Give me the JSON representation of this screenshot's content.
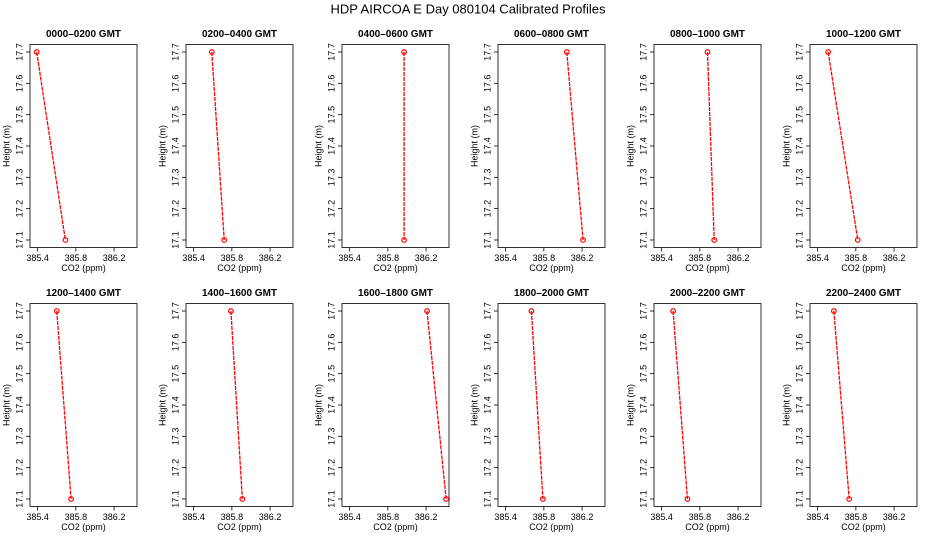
{
  "title": "HDP  AIRCOA E  Day 080104  Calibrated Profiles",
  "chart_data": [
    {
      "type": "line",
      "title": "0000–0200 GMT",
      "xlabel": "CO2 (ppm)",
      "ylabel": "Height (m)",
      "x": [
        385.39,
        385.69
      ],
      "values": [
        17.7,
        17.1
      ],
      "color": "#ff0000",
      "xlim": [
        385.32,
        386.44
      ],
      "ylim": [
        17.076,
        17.724
      ],
      "xticks": [
        385.4,
        385.8,
        386.2
      ],
      "yticks": [
        17.1,
        17.2,
        17.3,
        17.4,
        17.5,
        17.6,
        17.7
      ]
    },
    {
      "type": "line",
      "title": "0200–0400 GMT",
      "xlabel": "CO2 (ppm)",
      "ylabel": "Height (m)",
      "x": [
        385.59,
        385.72
      ],
      "values": [
        17.7,
        17.1
      ],
      "color": "#ff0000",
      "xlim": [
        385.32,
        386.44
      ],
      "ylim": [
        17.076,
        17.724
      ],
      "xticks": [
        385.4,
        385.8,
        386.2
      ],
      "yticks": [
        17.1,
        17.2,
        17.3,
        17.4,
        17.5,
        17.6,
        17.7
      ]
    },
    {
      "type": "line",
      "title": "0400–0600 GMT",
      "xlabel": "CO2 (ppm)",
      "ylabel": "Height (m)",
      "x": [
        385.97,
        385.97
      ],
      "values": [
        17.7,
        17.1
      ],
      "color": "#ff0000",
      "xlim": [
        385.32,
        386.44
      ],
      "ylim": [
        17.076,
        17.724
      ],
      "xticks": [
        385.4,
        385.8,
        386.2
      ],
      "yticks": [
        17.1,
        17.2,
        17.3,
        17.4,
        17.5,
        17.6,
        17.7
      ]
    },
    {
      "type": "line",
      "title": "0600–0800 GMT",
      "xlabel": "CO2 (ppm)",
      "ylabel": "Height (m)",
      "x": [
        386.04,
        386.21
      ],
      "values": [
        17.7,
        17.1
      ],
      "color": "#ff0000",
      "xlim": [
        385.32,
        386.44
      ],
      "ylim": [
        17.076,
        17.724
      ],
      "xticks": [
        385.4,
        385.8,
        386.2
      ],
      "yticks": [
        17.1,
        17.2,
        17.3,
        17.4,
        17.5,
        17.6,
        17.7
      ]
    },
    {
      "type": "line",
      "title": "0800–1000 GMT",
      "xlabel": "CO2 (ppm)",
      "ylabel": "Height (m)",
      "x": [
        385.88,
        385.95
      ],
      "values": [
        17.7,
        17.1
      ],
      "color": "#ff0000",
      "xlim": [
        385.32,
        386.44
      ],
      "ylim": [
        17.076,
        17.724
      ],
      "xticks": [
        385.4,
        385.8,
        386.2
      ],
      "yticks": [
        17.1,
        17.2,
        17.3,
        17.4,
        17.5,
        17.6,
        17.7
      ]
    },
    {
      "type": "line",
      "title": "1000–1200 GMT",
      "xlabel": "CO2 (ppm)",
      "ylabel": "Height (m)",
      "x": [
        385.51,
        385.82
      ],
      "values": [
        17.7,
        17.1
      ],
      "color": "#ff0000",
      "xlim": [
        385.32,
        386.44
      ],
      "ylim": [
        17.076,
        17.724
      ],
      "xticks": [
        385.4,
        385.8,
        386.2
      ],
      "yticks": [
        17.1,
        17.2,
        17.3,
        17.4,
        17.5,
        17.6,
        17.7
      ]
    },
    {
      "type": "line",
      "title": "1200–1400 GMT",
      "xlabel": "CO2 (ppm)",
      "ylabel": "Height (m)",
      "x": [
        385.6,
        385.75
      ],
      "values": [
        17.7,
        17.1
      ],
      "color": "#ff0000",
      "xlim": [
        385.32,
        386.44
      ],
      "ylim": [
        17.076,
        17.724
      ],
      "xticks": [
        385.4,
        385.8,
        386.2
      ],
      "yticks": [
        17.1,
        17.2,
        17.3,
        17.4,
        17.5,
        17.6,
        17.7
      ]
    },
    {
      "type": "line",
      "title": "1400–1600 GMT",
      "xlabel": "CO2 (ppm)",
      "ylabel": "Height (m)",
      "x": [
        385.79,
        385.91
      ],
      "values": [
        17.7,
        17.1
      ],
      "color": "#ff0000",
      "xlim": [
        385.32,
        386.44
      ],
      "ylim": [
        17.076,
        17.724
      ],
      "xticks": [
        385.4,
        385.8,
        386.2
      ],
      "yticks": [
        17.1,
        17.2,
        17.3,
        17.4,
        17.5,
        17.6,
        17.7
      ]
    },
    {
      "type": "line",
      "title": "1600–1800 GMT",
      "xlabel": "CO2 (ppm)",
      "ylabel": "Height (m)",
      "x": [
        386.21,
        386.41
      ],
      "values": [
        17.7,
        17.1
      ],
      "color": "#ff0000",
      "xlim": [
        385.32,
        386.44
      ],
      "ylim": [
        17.076,
        17.724
      ],
      "xticks": [
        385.4,
        385.8,
        386.2
      ],
      "yticks": [
        17.1,
        17.2,
        17.3,
        17.4,
        17.5,
        17.6,
        17.7
      ]
    },
    {
      "type": "line",
      "title": "1800–2000 GMT",
      "xlabel": "CO2 (ppm)",
      "ylabel": "Height (m)",
      "x": [
        385.67,
        385.79
      ],
      "values": [
        17.7,
        17.1
      ],
      "color": "#ff0000",
      "xlim": [
        385.32,
        386.44
      ],
      "ylim": [
        17.076,
        17.724
      ],
      "xticks": [
        385.4,
        385.8,
        386.2
      ],
      "yticks": [
        17.1,
        17.2,
        17.3,
        17.4,
        17.5,
        17.6,
        17.7
      ]
    },
    {
      "type": "line",
      "title": "2000–2200 GMT",
      "xlabel": "CO2 (ppm)",
      "ylabel": "Height (m)",
      "x": [
        385.52,
        385.67
      ],
      "values": [
        17.7,
        17.1
      ],
      "color": "#ff0000",
      "xlim": [
        385.32,
        386.44
      ],
      "ylim": [
        17.076,
        17.724
      ],
      "xticks": [
        385.4,
        385.8,
        386.2
      ],
      "yticks": [
        17.1,
        17.2,
        17.3,
        17.4,
        17.5,
        17.6,
        17.7
      ]
    },
    {
      "type": "line",
      "title": "2200–2400 GMT",
      "xlabel": "CO2 (ppm)",
      "ylabel": "Height (m)",
      "x": [
        385.57,
        385.73
      ],
      "values": [
        17.7,
        17.1
      ],
      "color": "#ff0000",
      "xlim": [
        385.32,
        386.44
      ],
      "ylim": [
        17.076,
        17.724
      ],
      "xticks": [
        385.4,
        385.8,
        386.2
      ],
      "yticks": [
        17.1,
        17.2,
        17.3,
        17.4,
        17.5,
        17.6,
        17.7
      ]
    }
  ]
}
